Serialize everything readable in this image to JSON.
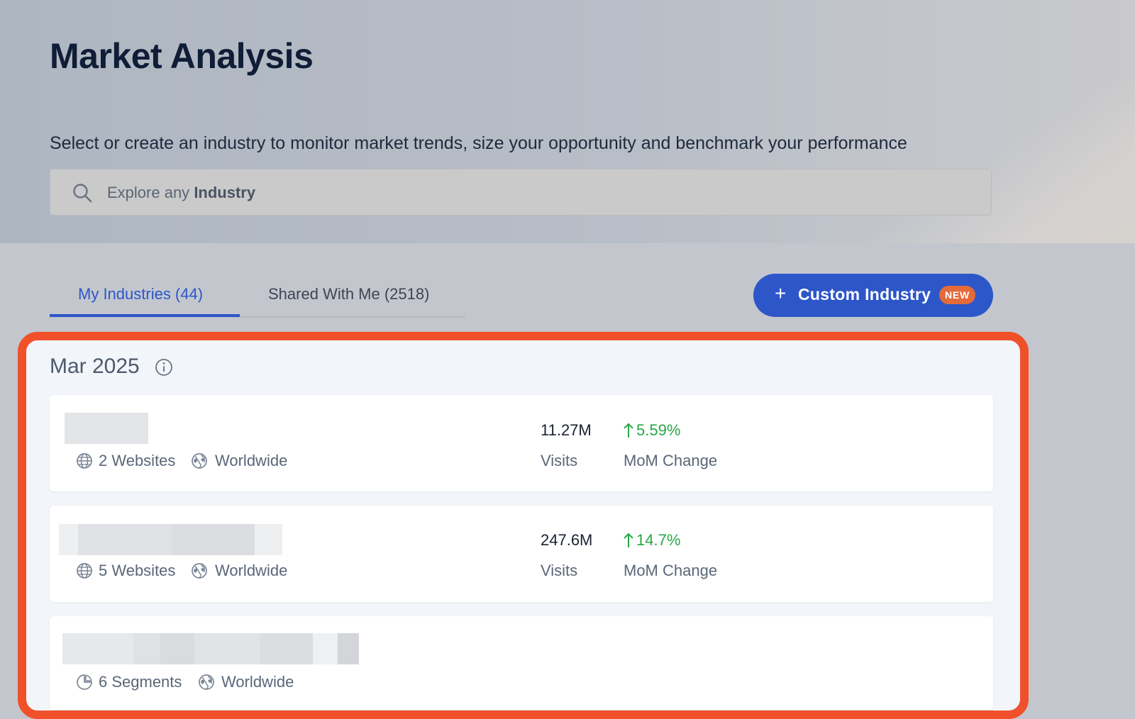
{
  "header": {
    "title": "Market Analysis",
    "subtitle": "Select or create an industry to monitor market trends, size your opportunity and benchmark your performance"
  },
  "search": {
    "placeholder_prefix": "Explore any",
    "placeholder_emphasis": "Industry",
    "icon": "search-icon"
  },
  "tabs": [
    {
      "label": "My Industries (44)",
      "active": true
    },
    {
      "label": "Shared With Me (2518)",
      "active": false
    }
  ],
  "custom_industry_button": {
    "icon": "plus-icon",
    "label": "Custom Industry",
    "badge": "NEW"
  },
  "period": {
    "label": "Mar 2025",
    "icon": "info-icon"
  },
  "industries": [
    {
      "name_redacted": true,
      "scope_icon": "globe-icon",
      "scope_count": "2 Websites",
      "region_icon": "world-icon",
      "region": "Worldwide",
      "visits": "11.27M",
      "visits_label": "Visits",
      "mom_change": "5.59%",
      "mom_direction": "up",
      "mom_label": "MoM Change"
    },
    {
      "name_redacted": true,
      "scope_icon": "globe-icon",
      "scope_count": "5 Websites",
      "region_icon": "world-icon",
      "region": "Worldwide",
      "visits": "247.6M",
      "visits_label": "Visits",
      "mom_change": "14.7%",
      "mom_direction": "up",
      "mom_label": "MoM Change"
    },
    {
      "name_redacted": true,
      "scope_icon": "pie-segments-icon",
      "scope_count": "6 Segments",
      "region_icon": "world-icon",
      "region": "Worldwide"
    }
  ],
  "colors": {
    "accent": "#2d56c9",
    "badge": "#e36a3a",
    "positive": "#27a844",
    "highlight_frame": "#f0512b"
  }
}
